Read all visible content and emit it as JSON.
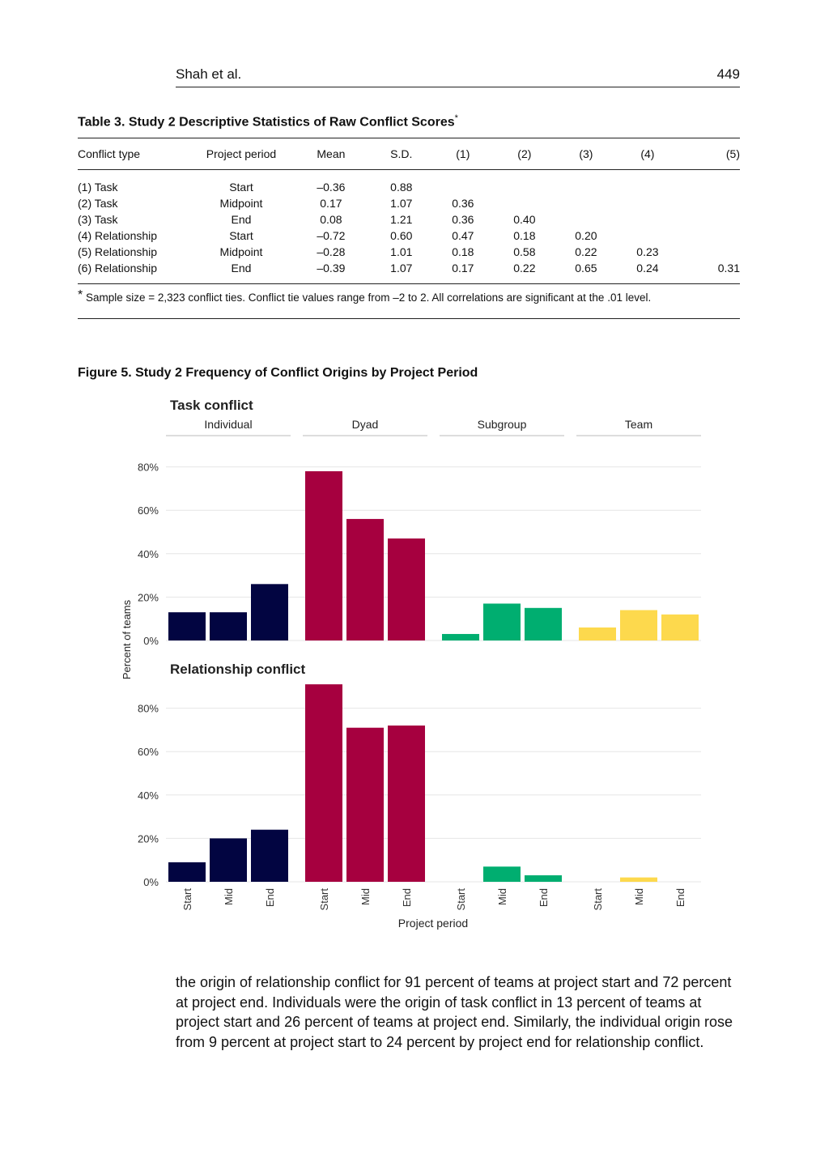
{
  "running_head": {
    "author": "Shah et al.",
    "page": "449"
  },
  "table": {
    "caption": "Table 3.  Study 2 Descriptive Statistics of Raw Conflict Scores",
    "caption_mark": "*",
    "headers": [
      "Conflict type",
      "Project period",
      "Mean",
      "S.D.",
      "(1)",
      "(2)",
      "(3)",
      "(4)",
      "(5)"
    ],
    "rows": [
      [
        "(1) Task",
        "Start",
        "–0.36",
        "0.88",
        "",
        "",
        "",
        "",
        ""
      ],
      [
        "(2) Task",
        "Midpoint",
        "0.17",
        "1.07",
        "0.36",
        "",
        "",
        "",
        ""
      ],
      [
        "(3) Task",
        "End",
        "0.08",
        "1.21",
        "0.36",
        "0.40",
        "",
        "",
        ""
      ],
      [
        "(4) Relationship",
        "Start",
        "–0.72",
        "0.60",
        "0.47",
        "0.18",
        "0.20",
        "",
        ""
      ],
      [
        "(5) Relationship",
        "Midpoint",
        "–0.28",
        "1.01",
        "0.18",
        "0.58",
        "0.22",
        "0.23",
        ""
      ],
      [
        "(6) Relationship",
        "End",
        "–0.39",
        "1.07",
        "0.17",
        "0.22",
        "0.65",
        "0.24",
        "0.31"
      ]
    ],
    "note_mark": "*",
    "note": " Sample size = 2,323 conflict ties. Conflict tie values range from –2 to 2. All correlations are significant at the .01 level."
  },
  "figure": {
    "caption": "Figure 5.  Study 2 Frequency of Conflict Origins by Project Period"
  },
  "chart_data": {
    "type": "bar",
    "ylabel": "Percent of teams",
    "xlabel": "Project period",
    "ytick_labels": [
      "0%",
      "20%",
      "40%",
      "60%",
      "80%"
    ],
    "ylim": [
      0,
      0.92
    ],
    "grid": true,
    "origins": [
      "Individual",
      "Dyad",
      "Subgroup",
      "Team"
    ],
    "periods": [
      "Start",
      "Mid",
      "End"
    ],
    "colors": [
      "#020541",
      "#A6003F",
      "#00AE70",
      "#FDD94D"
    ],
    "panels": [
      {
        "title": "Task conflict",
        "values": [
          [
            0.13,
            0.13,
            0.26
          ],
          [
            0.78,
            0.56,
            0.47
          ],
          [
            0.03,
            0.17,
            0.15
          ],
          [
            0.06,
            0.14,
            0.12
          ]
        ]
      },
      {
        "title": "Relationship conflict",
        "values": [
          [
            0.09,
            0.2,
            0.24
          ],
          [
            0.91,
            0.71,
            0.72
          ],
          [
            0.0,
            0.07,
            0.03
          ],
          [
            0.0,
            0.02,
            0.0
          ]
        ]
      }
    ]
  },
  "body_text": "the origin of relationship conflict for 91 percent of teams at project start and 72 percent at project end. Individuals were the origin of task conflict in 13 percent of teams at project start and 26 percent of teams at project end. Similarly, the individual origin rose from 9 percent at project start to 24 percent by project end for relationship conflict."
}
